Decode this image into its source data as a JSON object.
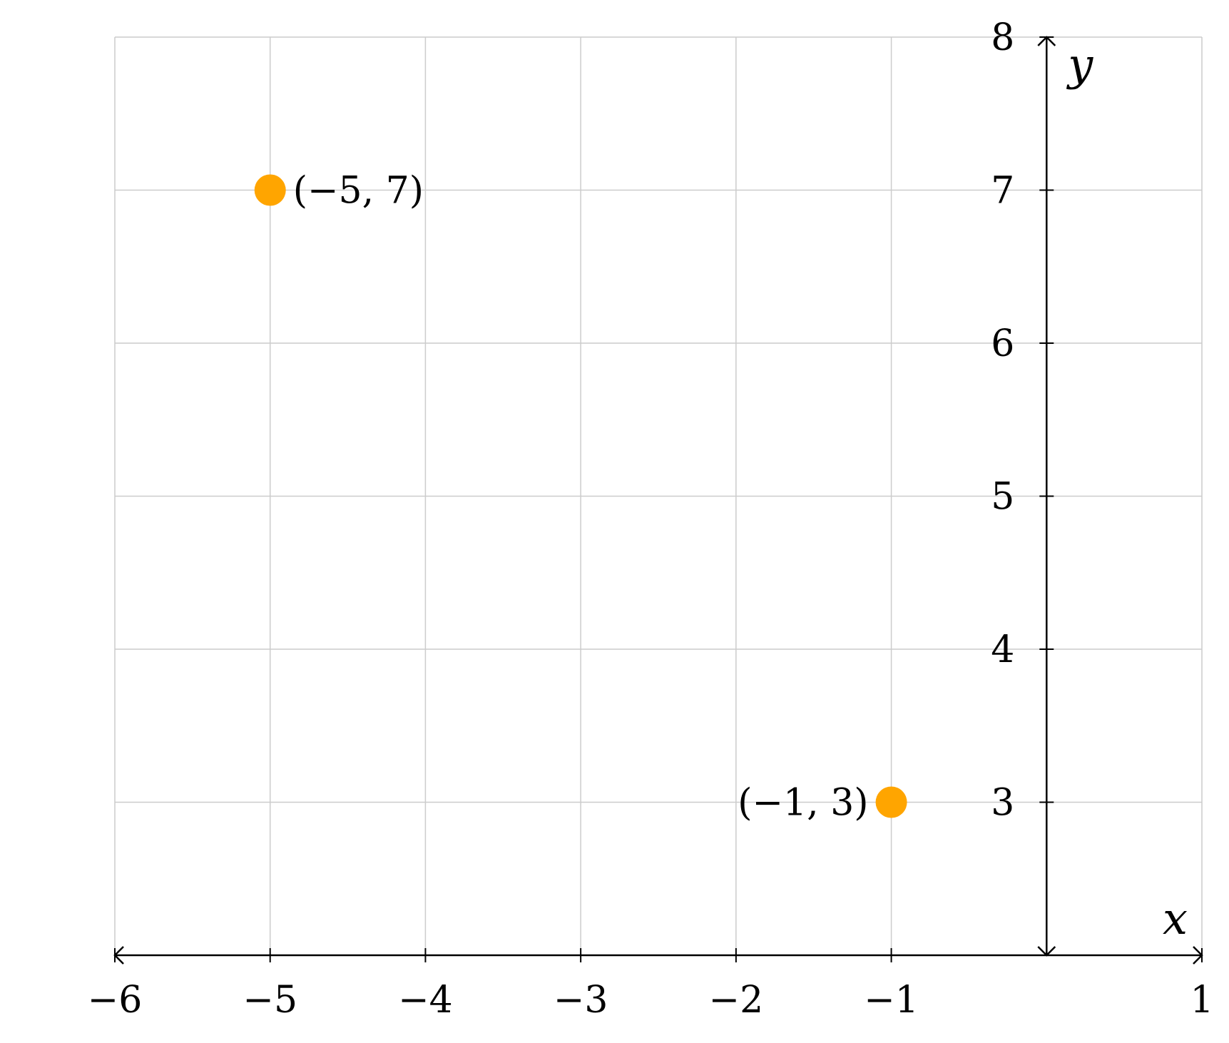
{
  "chart_data": {
    "type": "scatter",
    "xlabel": "x",
    "ylabel": "y",
    "xlim": [
      -6,
      1
    ],
    "ylim": [
      2,
      8
    ],
    "grid": true,
    "x_ticks": [
      -6,
      -5,
      -4,
      -3,
      -2,
      -1,
      1
    ],
    "x_tick_labels": [
      "−6",
      "−5",
      "−4",
      "−3",
      "−2",
      "−1",
      "1"
    ],
    "y_ticks": [
      3,
      4,
      5,
      6,
      7,
      8
    ],
    "y_tick_labels": [
      "3",
      "4",
      "5",
      "6",
      "7",
      "8"
    ],
    "points": [
      {
        "x": -5,
        "y": 7,
        "label": "(−5, 7)",
        "label_side": "right"
      },
      {
        "x": -1,
        "y": 3,
        "label": "(−1, 3)",
        "label_side": "left"
      }
    ],
    "point_color": "#FFA500"
  }
}
